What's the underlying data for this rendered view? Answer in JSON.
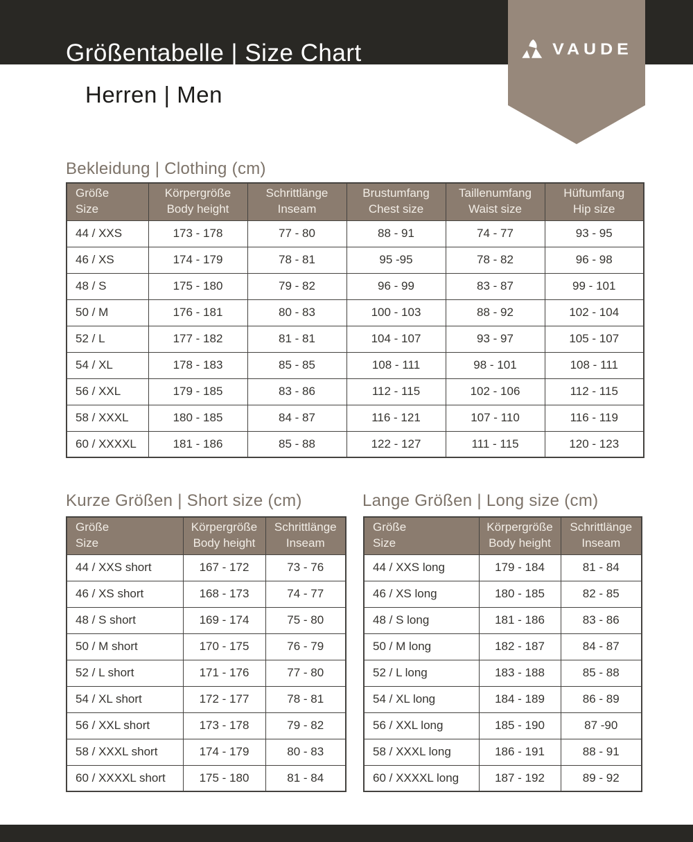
{
  "page": {
    "title": "Größentabelle | Size Chart",
    "subtitle": "Herren | Men",
    "brand": "VAUDE"
  },
  "colors": {
    "bar_black": "#292824",
    "badge_brown": "#97887b",
    "table_header_brown": "#8b7c6f",
    "section_title_brown": "#7d7369"
  },
  "icons": {
    "logo": "vaude-mountain-icon"
  },
  "tables": [
    {
      "title": "Bekleidung | Clothing (cm)",
      "columns": [
        [
          "Größe",
          "Size"
        ],
        [
          "Körpergröße",
          "Body height"
        ],
        [
          "Schrittlänge",
          "Inseam"
        ],
        [
          "Brustumfang",
          "Chest size"
        ],
        [
          "Taillenumfang",
          "Waist size"
        ],
        [
          "Hüftumfang",
          "Hip size"
        ]
      ],
      "rows": [
        [
          "44 / XXS",
          "173 - 178",
          "77 - 80",
          "88 - 91",
          "74 - 77",
          "93 - 95"
        ],
        [
          "46 / XS",
          "174 - 179",
          "78 - 81",
          "95 -95",
          "78 - 82",
          "96 - 98"
        ],
        [
          "48 / S",
          "175 - 180",
          "79 - 82",
          "96 - 99",
          "83 - 87",
          "99 - 101"
        ],
        [
          "50 / M",
          "176 - 181",
          "80 - 83",
          "100 - 103",
          "88 - 92",
          "102 - 104"
        ],
        [
          "52 / L",
          "177 - 182",
          "81 - 81",
          "104 - 107",
          "93 - 97",
          "105 - 107"
        ],
        [
          "54 / XL",
          "178 - 183",
          "85 - 85",
          "108 - 111",
          "98 - 101",
          "108 - 111"
        ],
        [
          "56 / XXL",
          "179 - 185",
          "83 - 86",
          "112 - 115",
          "102 - 106",
          "112 - 115"
        ],
        [
          "58 / XXXL",
          "180 - 185",
          "84 - 87",
          "116 - 121",
          "107 - 110",
          "116 - 119"
        ],
        [
          "60 / XXXXL",
          "181 - 186",
          "85 - 88",
          "122 - 127",
          "111 - 115",
          "120 - 123"
        ]
      ]
    },
    {
      "title": "Kurze Größen | Short size (cm)",
      "columns": [
        [
          "Größe",
          "Size"
        ],
        [
          "Körpergröße",
          "Body height"
        ],
        [
          "Schrittlänge",
          "Inseam"
        ]
      ],
      "rows": [
        [
          "44 / XXS short",
          "167 - 172",
          "73 - 76"
        ],
        [
          "46 / XS short",
          "168 - 173",
          "74 - 77"
        ],
        [
          "48 / S short",
          "169 - 174",
          "75 - 80"
        ],
        [
          "50 / M short",
          "170 - 175",
          "76 - 79"
        ],
        [
          "52 / L short",
          "171 - 176",
          "77 - 80"
        ],
        [
          "54 / XL short",
          "172 - 177",
          "78 - 81"
        ],
        [
          "56 / XXL short",
          "173 - 178",
          "79 - 82"
        ],
        [
          "58 / XXXL short",
          "174 - 179",
          "80 - 83"
        ],
        [
          "60 / XXXXL short",
          "175 - 180",
          "81 - 84"
        ]
      ]
    },
    {
      "title": "Lange Größen | Long size (cm)",
      "columns": [
        [
          "Größe",
          "Size"
        ],
        [
          "Körpergröße",
          "Body height"
        ],
        [
          "Schrittlänge",
          "Inseam"
        ]
      ],
      "rows": [
        [
          "44 / XXS long",
          "179 - 184",
          "81 - 84"
        ],
        [
          "46 / XS long",
          "180 - 185",
          "82 - 85"
        ],
        [
          "48 / S long",
          "181 - 186",
          "83 - 86"
        ],
        [
          "50 / M long",
          "182 - 187",
          "84 - 87"
        ],
        [
          "52 / L long",
          "183 - 188",
          "85 - 88"
        ],
        [
          "54 / XL long",
          "184 - 189",
          "86 - 89"
        ],
        [
          "56 / XXL long",
          "185 - 190",
          "87 -90"
        ],
        [
          "58 / XXXL long",
          "186 - 191",
          "88 - 91"
        ],
        [
          "60 / XXXXL long",
          "187 - 192",
          "89 - 92"
        ]
      ]
    }
  ]
}
